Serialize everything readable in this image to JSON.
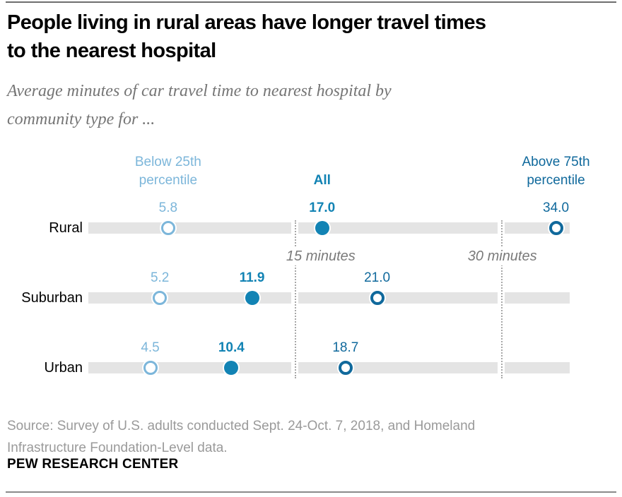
{
  "header": {
    "title_lines": [
      "People living in rural areas have longer travel times",
      "to the nearest hospital"
    ],
    "subtitle_lines": [
      "Average minutes of car travel time to nearest hospital by",
      "community type for ..."
    ]
  },
  "chart_data": {
    "type": "scatter",
    "subtype": "dot-plot",
    "unit": "minutes",
    "categories": [
      "Rural",
      "Suburban",
      "Urban"
    ],
    "series": [
      {
        "name": "Below 25th percentile",
        "key": "below",
        "values": [
          5.8,
          5.2,
          4.5
        ],
        "value_labels": [
          "5.8",
          "5.2",
          "4.5"
        ],
        "marker": "open-circle-light"
      },
      {
        "name": "All",
        "key": "all",
        "values": [
          17.0,
          11.9,
          10.4
        ],
        "value_labels": [
          "17.0",
          "11.9",
          "10.4"
        ],
        "marker": "filled-circle"
      },
      {
        "name": "Above 75th percentile",
        "key": "above",
        "values": [
          34.0,
          21.0,
          18.7
        ],
        "value_labels": [
          "34.0",
          "21.0",
          "18.7"
        ],
        "marker": "open-circle-dark"
      }
    ],
    "axis": {
      "min": 0,
      "max": 35,
      "gridlines": [
        {
          "value": 15,
          "label": "15 minutes"
        },
        {
          "value": 30,
          "label": "30 minutes"
        }
      ]
    },
    "legend_position": "column-headers-above-first-row",
    "grid": "vertical-dotted-only",
    "colors": {
      "below": "#7cb6da",
      "all": "#1283b4",
      "above": "#10699c",
      "bar": "#e4e4e4",
      "gridline": "#a8a8a8"
    }
  },
  "footer": {
    "source_lines": [
      "Source: Survey of U.S. adults conducted Sept. 24-Oct. 7, 2018, and Homeland",
      "Infrastructure Foundation-Level data."
    ],
    "brand": "PEW RESEARCH CENTER"
  }
}
